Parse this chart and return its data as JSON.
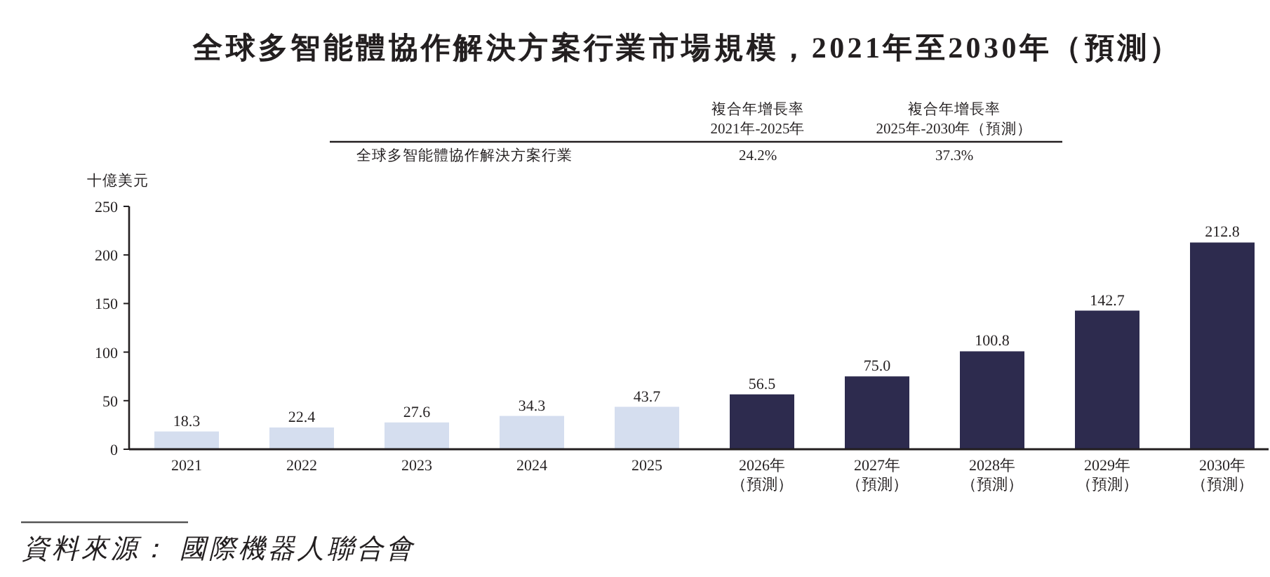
{
  "chart_data": {
    "type": "bar",
    "title": "全球多智能體協作解決方案行業市場規模，2021年至2030年（預測）",
    "ylabel": "十億美元",
    "categories": [
      "2021",
      "2022",
      "2023",
      "2024",
      "2025",
      "2026年（預測）",
      "2027年（預測）",
      "2028年（預測）",
      "2029年（預測）",
      "2030年（預測）"
    ],
    "values": [
      18.3,
      22.4,
      27.6,
      34.3,
      43.7,
      56.5,
      75.0,
      100.8,
      142.7,
      212.8
    ],
    "value_labels": [
      "18.3",
      "22.4",
      "27.6",
      "34.3",
      "43.7",
      "56.5",
      "75.0",
      "100.8",
      "142.7",
      "212.8"
    ],
    "colors": [
      "#d5deef",
      "#d5deef",
      "#d5deef",
      "#d5deef",
      "#d5deef",
      "#2d2b4e",
      "#2d2b4e",
      "#2d2b4e",
      "#2d2b4e",
      "#2d2b4e"
    ],
    "ylim": [
      0,
      250
    ],
    "yticks": [
      0,
      50,
      100,
      150,
      200,
      250
    ],
    "annotations": [
      "複合年增長率",
      "2021年-2025年",
      "複合年增長率",
      "2025年-2030年（預測）",
      "全球多智能體協作解決方案行業",
      "24.2%",
      "37.3%",
      "資料來源：  國際機器人聯合會"
    ]
  }
}
